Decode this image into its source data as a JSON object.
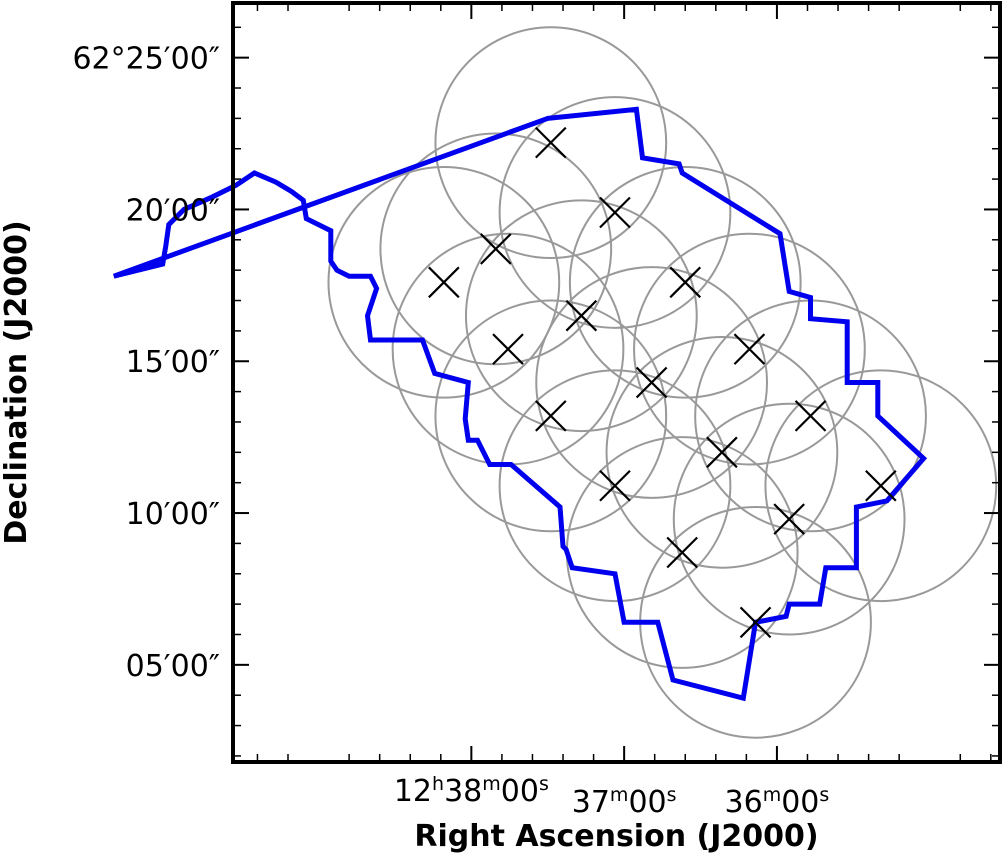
{
  "chart_data": {
    "type": "scatter",
    "xlabel": "Right Ascension (J2000)",
    "ylabel": "Declination (J2000)",
    "x_unit": "arcmin of RA offset (positive = east) relative to 12h37m00s",
    "y_unit": "arcmin of Dec offset relative to 62°00′00″",
    "xlim": [
      12.8,
      -12.3
    ],
    "ylim": [
      1.8,
      26.8
    ],
    "grid": false,
    "x_ticks": [
      {
        "value": 5.0,
        "parts": [
          "12",
          "h",
          "38",
          "m",
          "00",
          "s"
        ]
      },
      {
        "value": 0.0,
        "parts": [
          "",
          "",
          "37",
          "m",
          "00",
          "s"
        ]
      },
      {
        "value": -5.0,
        "parts": [
          "",
          "",
          "36",
          "m",
          "00",
          "s"
        ]
      }
    ],
    "y_ticks": [
      {
        "value": 25,
        "label": "62°25′00″"
      },
      {
        "value": 20,
        "label": "20′00″"
      },
      {
        "value": 15,
        "label": "15′00″"
      },
      {
        "value": 10,
        "label": "10′00″"
      },
      {
        "value": 5,
        "label": "05′00″"
      }
    ],
    "circle_radius": 3.8,
    "circle_color": "#999999",
    "marker_color": "#000000",
    "outline_color": "#0000ee",
    "pointings": [
      {
        "x": 2.4,
        "y": 22.2
      },
      {
        "x": 0.3,
        "y": 19.9
      },
      {
        "x": 4.2,
        "y": 18.7
      },
      {
        "x": -2.0,
        "y": 17.6
      },
      {
        "x": 5.9,
        "y": 17.6
      },
      {
        "x": 1.4,
        "y": 16.5
      },
      {
        "x": -4.1,
        "y": 15.4
      },
      {
        "x": 3.8,
        "y": 15.4
      },
      {
        "x": -0.9,
        "y": 14.3
      },
      {
        "x": -6.1,
        "y": 13.2
      },
      {
        "x": 2.4,
        "y": 13.2
      },
      {
        "x": -3.2,
        "y": 12.0
      },
      {
        "x": 0.3,
        "y": 10.9
      },
      {
        "x": -8.4,
        "y": 10.9
      },
      {
        "x": -5.4,
        "y": 9.8
      },
      {
        "x": -1.9,
        "y": 8.7
      },
      {
        "x": -4.3,
        "y": 6.4
      }
    ],
    "outline": [
      [
        2.5,
        23.0
      ],
      [
        -0.4,
        23.3
      ],
      [
        -0.6,
        21.7
      ],
      [
        -1.8,
        21.5
      ],
      [
        -1.9,
        21.2
      ],
      [
        -5.1,
        19.2
      ],
      [
        -5.4,
        17.3
      ],
      [
        -6.1,
        17.1
      ],
      [
        -6.1,
        16.4
      ],
      [
        -7.3,
        16.3
      ],
      [
        -7.3,
        14.3
      ],
      [
        -8.3,
        14.3
      ],
      [
        -8.3,
        13.2
      ],
      [
        -9.8,
        11.8
      ],
      [
        -8.6,
        10.4
      ],
      [
        -7.6,
        10.2
      ],
      [
        -7.6,
        8.2
      ],
      [
        -6.6,
        8.2
      ],
      [
        -6.4,
        7.0
      ],
      [
        -5.4,
        7.0
      ],
      [
        -5.3,
        6.6
      ],
      [
        -4.3,
        6.4
      ],
      [
        -3.9,
        3.9
      ],
      [
        -1.6,
        4.5
      ],
      [
        -1.1,
        6.4
      ],
      [
        0.0,
        6.4
      ],
      [
        0.3,
        8.0
      ],
      [
        1.7,
        8.2
      ],
      [
        1.9,
        8.8
      ],
      [
        2.0,
        8.9
      ],
      [
        2.1,
        10.2
      ],
      [
        3.7,
        11.6
      ],
      [
        4.4,
        11.6
      ],
      [
        4.8,
        12.4
      ],
      [
        5.1,
        12.4
      ],
      [
        5.2,
        13.1
      ],
      [
        5.1,
        14.3
      ],
      [
        6.2,
        14.6
      ],
      [
        6.6,
        15.7
      ],
      [
        8.3,
        15.7
      ],
      [
        8.4,
        16.5
      ],
      [
        8.1,
        17.4
      ],
      [
        8.3,
        17.8
      ],
      [
        9.0,
        17.8
      ],
      [
        9.4,
        18.0
      ],
      [
        9.6,
        18.3
      ],
      [
        9.6,
        19.3
      ],
      [
        10.4,
        19.7
      ],
      [
        10.5,
        20.3
      ],
      [
        10.9,
        20.6
      ],
      [
        11.4,
        20.9
      ],
      [
        12.1,
        21.2
      ],
      [
        12.7,
        20.8
      ],
      [
        13.5,
        20.4
      ],
      [
        14.4,
        20.0
      ],
      [
        14.9,
        19.5
      ],
      [
        15.0,
        18.8
      ],
      [
        15.1,
        18.2
      ],
      [
        16.7,
        17.8
      ]
    ]
  }
}
